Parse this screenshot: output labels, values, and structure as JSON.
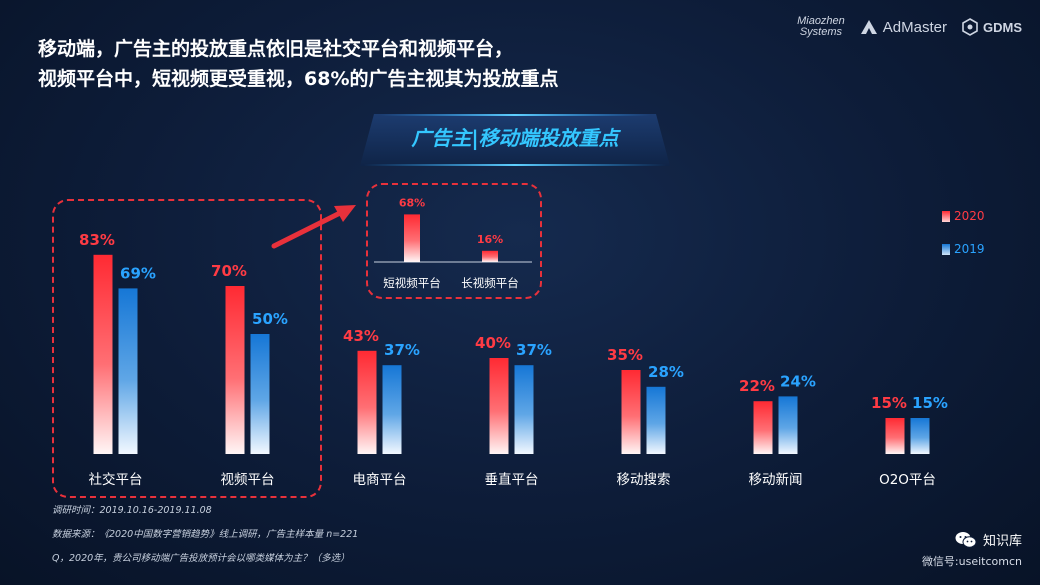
{
  "headline": {
    "line1": "移动端，广告主的投放重点依旧是社交平台和视频平台，",
    "line2": "视频平台中，短视频更受重视，68%的广告主视其为投放重点"
  },
  "logos": {
    "miaozhen_line1": "Miaozhen",
    "miaozhen_line2": "Systems",
    "admaster": "AdMaster",
    "gdms": "GDMS"
  },
  "subtitle": "广告主|移动端投放重点",
  "legend": {
    "s2020": "2020",
    "s2019": "2019"
  },
  "footnotes": {
    "period": "调研时间：2019.10.16-2019.11.08",
    "source": "数据来源：《2020中国数字营销趋势》线上调研，广告主样本量 n=221",
    "question": "Q，2020年，贵公司移动端广告投放预计会以哪类媒体为主？（多选）"
  },
  "watermark": {
    "name": "知识库",
    "id": "微信号:useitcomcn"
  },
  "colors": {
    "red": "#ff2a33",
    "blue": "#1f86e0",
    "label_red": "#ff3b44",
    "label_blue": "#2aa3ff"
  },
  "chart_data": [
    {
      "type": "bar",
      "categories": [
        "社交平台",
        "视频平台",
        "电商平台",
        "垂直平台",
        "移动搜索",
        "移动新闻",
        "O2O平台"
      ],
      "series": [
        {
          "name": "2020",
          "values": [
            83,
            70,
            43,
            40,
            35,
            22,
            15
          ],
          "labels": [
            "83%",
            "70%",
            "43%",
            "40%",
            "35%",
            "22%",
            "15%"
          ]
        },
        {
          "name": "2019",
          "values": [
            69,
            50,
            37,
            37,
            28,
            24,
            15
          ],
          "labels": [
            "69%",
            "50%",
            "37%",
            "37%",
            "28%",
            "24%",
            "15%"
          ]
        }
      ],
      "title": "广告主|移动端投放重点",
      "ylim": [
        0,
        100
      ],
      "legend": "right"
    },
    {
      "type": "bar",
      "categories": [
        "短视频平台",
        "长视频平台"
      ],
      "values": [
        68,
        16
      ],
      "labels": [
        "68%",
        "16%"
      ],
      "ylim": [
        0,
        100
      ]
    }
  ]
}
